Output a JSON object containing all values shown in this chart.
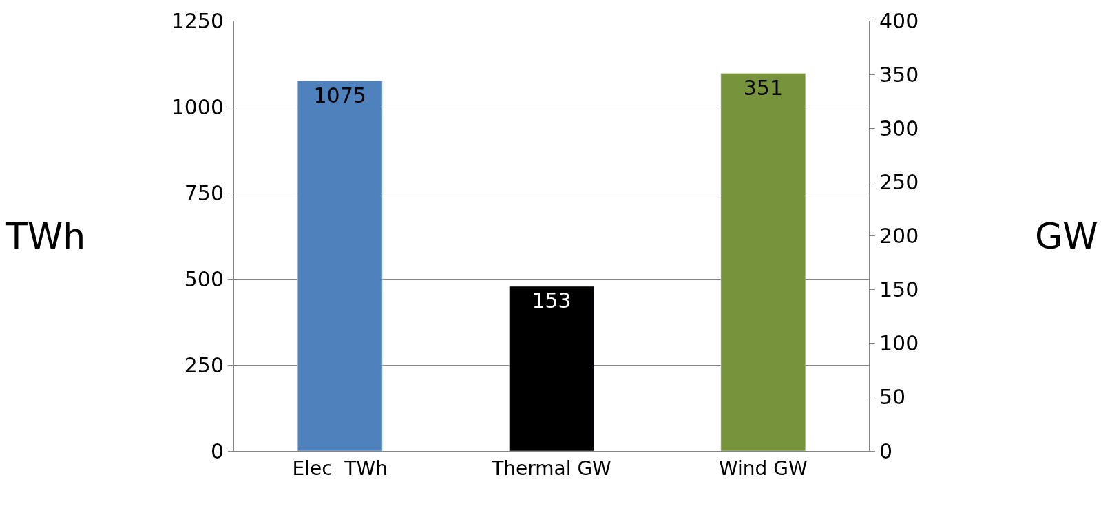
{
  "chart_data": {
    "type": "bar",
    "categories": [
      "Elec  TWh",
      "Thermal GW",
      "Wind GW"
    ],
    "series": [
      {
        "color": "#4f81bd",
        "values": [
          1075,
          null,
          null
        ],
        "axis": "y"
      },
      {
        "color": "#000000",
        "values": [
          null,
          153,
          null
        ],
        "axis": "y2"
      },
      {
        "color": "#77933c",
        "values": [
          null,
          null,
          351
        ],
        "axis": "y2"
      }
    ],
    "ylabel": "TWh",
    "y2label": "GW",
    "ylim": [
      0,
      1250
    ],
    "yticks": [
      0,
      250,
      500,
      750,
      1000,
      1250
    ],
    "y2lim": [
      0,
      400
    ],
    "y2ticks": [
      0,
      50,
      100,
      150,
      200,
      250,
      300,
      350,
      400
    ],
    "grid": "y",
    "data_labels": true,
    "legend": false
  }
}
